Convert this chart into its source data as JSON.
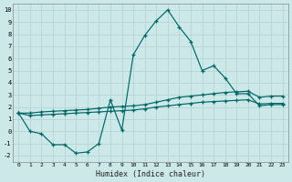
{
  "xlabel": "Humidex (Indice chaleur)",
  "bg_color": "#cce8e8",
  "grid_color": "#b8d8d8",
  "line_color": "#006666",
  "xlim": [
    -0.5,
    23.5
  ],
  "ylim": [
    -2.5,
    10.5
  ],
  "xticks": [
    0,
    1,
    2,
    3,
    4,
    5,
    6,
    7,
    8,
    9,
    10,
    11,
    12,
    13,
    14,
    15,
    16,
    17,
    18,
    19,
    20,
    21,
    22,
    23
  ],
  "yticks": [
    -2,
    -1,
    0,
    1,
    2,
    3,
    4,
    5,
    6,
    7,
    8,
    9,
    10
  ],
  "line1_x": [
    0,
    1,
    2,
    3,
    4,
    5,
    6,
    7,
    8,
    9,
    10,
    11,
    12,
    13,
    14,
    15,
    16,
    17,
    18,
    19,
    20,
    21,
    22,
    23
  ],
  "line1_y": [
    1.5,
    0.0,
    -0.2,
    -1.1,
    -1.1,
    -1.8,
    -1.7,
    -1.0,
    2.6,
    0.1,
    6.3,
    7.9,
    9.1,
    10.0,
    8.6,
    7.4,
    5.0,
    5.4,
    4.4,
    3.1,
    3.1,
    2.1,
    2.2,
    2.2
  ],
  "line2_x": [
    0,
    1,
    2,
    3,
    4,
    5,
    6,
    7,
    8,
    9,
    10,
    11,
    12,
    13,
    14,
    15,
    16,
    17,
    18,
    19,
    20,
    21,
    22,
    23
  ],
  "line2_y": [
    1.5,
    1.5,
    1.6,
    1.65,
    1.7,
    1.75,
    1.8,
    1.9,
    2.0,
    2.05,
    2.1,
    2.2,
    2.4,
    2.6,
    2.8,
    2.9,
    3.0,
    3.1,
    3.2,
    3.25,
    3.3,
    2.8,
    2.9,
    2.9
  ],
  "line3_x": [
    0,
    1,
    2,
    3,
    4,
    5,
    6,
    7,
    8,
    9,
    10,
    11,
    12,
    13,
    14,
    15,
    16,
    17,
    18,
    19,
    20,
    21,
    22,
    23
  ],
  "line3_y": [
    1.5,
    1.3,
    1.35,
    1.4,
    1.45,
    1.5,
    1.55,
    1.6,
    1.65,
    1.7,
    1.75,
    1.85,
    2.0,
    2.1,
    2.2,
    2.3,
    2.4,
    2.45,
    2.5,
    2.55,
    2.6,
    2.25,
    2.3,
    2.3
  ]
}
